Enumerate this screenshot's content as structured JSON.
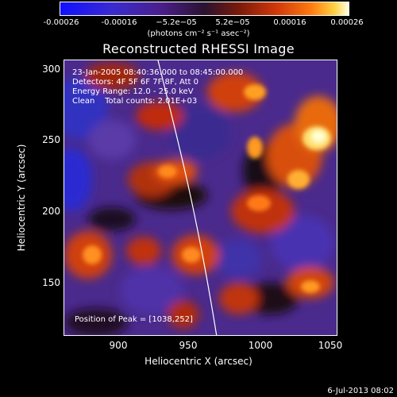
{
  "colorbar": {
    "ticks": [
      "-0.00026",
      "-0.00016",
      "−5.2e−05",
      "5.2e−05",
      "0.00016",
      "0.00026"
    ],
    "units": "(photons cm⁻² s⁻¹ asec⁻²)"
  },
  "title": "Reconstructed RHESSI Image",
  "info": {
    "time": "23-Jan-2005 08:40:36.000 to 08:45:00.000",
    "detectors": "Detectors: 4F 5F 6F 7F 8F, Att 0",
    "energy": "Energy Range: 12.0 - 25.0 keV",
    "clean": "Clean    Total counts: 2.01E+03"
  },
  "peak": "Position of Peak = [1038,252]",
  "axes": {
    "xlabel": "Heliocentric X (arcsec)",
    "ylabel": "Heliocentric Y (arcsec)",
    "xticks": [
      "900",
      "950",
      "1000",
      "1050"
    ],
    "yticks": [
      "300",
      "250",
      "200",
      "150"
    ],
    "xlim": [
      862,
      1050
    ],
    "ylim": [
      112,
      305
    ]
  },
  "timestamp": "6-Jul-2013 08:02",
  "colors": {
    "background": "#000000",
    "text": "#ffffff"
  }
}
